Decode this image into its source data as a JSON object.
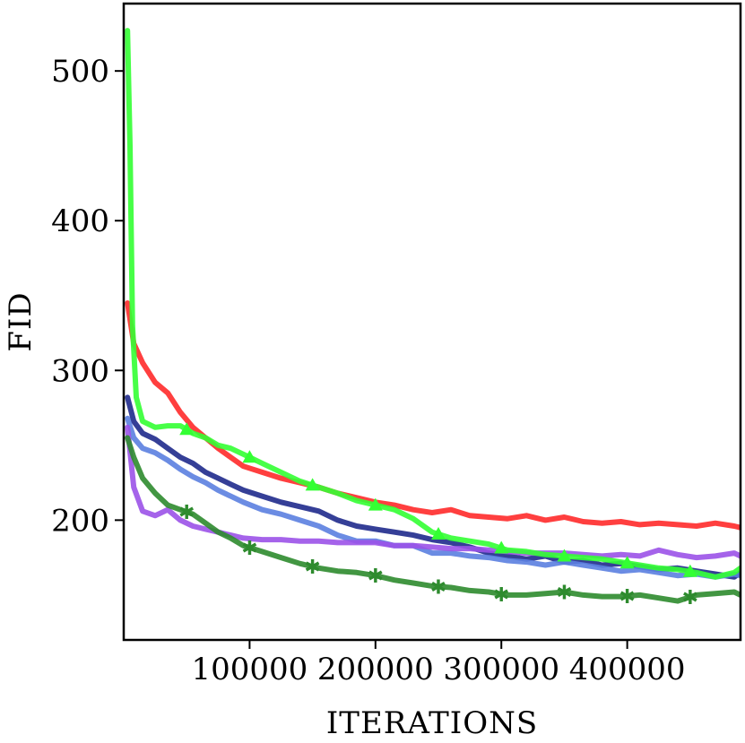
{
  "chart_data": {
    "type": "line",
    "xlabel": "ITERATIONS",
    "ylabel": "FID",
    "xlim": [
      0,
      490000
    ],
    "ylim": [
      120,
      545
    ],
    "x_ticks": [
      100000,
      200000,
      300000,
      400000
    ],
    "y_ticks": [
      200,
      300,
      400,
      500
    ],
    "grid": false,
    "series": [
      {
        "color": "#ff2a2a",
        "marker": "none",
        "points": [
          [
            3000,
            345
          ],
          [
            8000,
            318
          ],
          [
            15000,
            305
          ],
          [
            25000,
            292
          ],
          [
            35000,
            285
          ],
          [
            45000,
            272
          ],
          [
            55000,
            262
          ],
          [
            65000,
            255
          ],
          [
            75000,
            248
          ],
          [
            85000,
            242
          ],
          [
            95000,
            236
          ],
          [
            110000,
            232
          ],
          [
            125000,
            228
          ],
          [
            140000,
            225
          ],
          [
            155000,
            222
          ],
          [
            170000,
            218
          ],
          [
            185000,
            215
          ],
          [
            200000,
            212
          ],
          [
            215000,
            210
          ],
          [
            230000,
            207
          ],
          [
            245000,
            205
          ],
          [
            260000,
            207
          ],
          [
            275000,
            203
          ],
          [
            290000,
            202
          ],
          [
            305000,
            201
          ],
          [
            320000,
            203
          ],
          [
            335000,
            200
          ],
          [
            350000,
            202
          ],
          [
            365000,
            199
          ],
          [
            380000,
            198
          ],
          [
            395000,
            199
          ],
          [
            410000,
            197
          ],
          [
            425000,
            198
          ],
          [
            440000,
            197
          ],
          [
            455000,
            196
          ],
          [
            470000,
            198
          ],
          [
            485000,
            196
          ],
          [
            490000,
            195
          ]
        ]
      },
      {
        "color": "#1f2a8c",
        "marker": "none",
        "points": [
          [
            3000,
            282
          ],
          [
            8000,
            266
          ],
          [
            15000,
            258
          ],
          [
            25000,
            254
          ],
          [
            35000,
            248
          ],
          [
            45000,
            242
          ],
          [
            55000,
            238
          ],
          [
            65000,
            232
          ],
          [
            75000,
            228
          ],
          [
            85000,
            224
          ],
          [
            95000,
            220
          ],
          [
            110000,
            216
          ],
          [
            125000,
            212
          ],
          [
            140000,
            209
          ],
          [
            155000,
            206
          ],
          [
            170000,
            200
          ],
          [
            185000,
            196
          ],
          [
            200000,
            194
          ],
          [
            215000,
            192
          ],
          [
            230000,
            190
          ],
          [
            245000,
            187
          ],
          [
            260000,
            185
          ],
          [
            275000,
            182
          ],
          [
            290000,
            178
          ],
          [
            305000,
            176
          ],
          [
            320000,
            174
          ],
          [
            335000,
            176
          ],
          [
            350000,
            172
          ],
          [
            365000,
            173
          ],
          [
            380000,
            170
          ],
          [
            395000,
            171
          ],
          [
            410000,
            169
          ],
          [
            425000,
            167
          ],
          [
            440000,
            168
          ],
          [
            455000,
            166
          ],
          [
            470000,
            164
          ],
          [
            485000,
            162
          ],
          [
            490000,
            165
          ]
        ]
      },
      {
        "color": "#5b7fe0",
        "marker": "none",
        "points": [
          [
            3000,
            268
          ],
          [
            8000,
            255
          ],
          [
            15000,
            248
          ],
          [
            25000,
            245
          ],
          [
            35000,
            240
          ],
          [
            45000,
            234
          ],
          [
            55000,
            229
          ],
          [
            65000,
            225
          ],
          [
            75000,
            220
          ],
          [
            85000,
            216
          ],
          [
            95000,
            212
          ],
          [
            110000,
            207
          ],
          [
            125000,
            204
          ],
          [
            140000,
            200
          ],
          [
            155000,
            196
          ],
          [
            170000,
            190
          ],
          [
            185000,
            186
          ],
          [
            200000,
            186
          ],
          [
            215000,
            183
          ],
          [
            230000,
            183
          ],
          [
            245000,
            178
          ],
          [
            260000,
            178
          ],
          [
            275000,
            176
          ],
          [
            290000,
            175
          ],
          [
            305000,
            173
          ],
          [
            320000,
            172
          ],
          [
            335000,
            170
          ],
          [
            350000,
            172
          ],
          [
            365000,
            170
          ],
          [
            380000,
            168
          ],
          [
            395000,
            166
          ],
          [
            410000,
            167
          ],
          [
            425000,
            165
          ],
          [
            440000,
            163
          ],
          [
            455000,
            164
          ],
          [
            470000,
            162
          ],
          [
            485000,
            164
          ],
          [
            490000,
            163
          ]
        ]
      },
      {
        "color": "#9b52e8",
        "marker": "none",
        "points": [
          [
            3000,
            262
          ],
          [
            8000,
            222
          ],
          [
            15000,
            206
          ],
          [
            25000,
            203
          ],
          [
            35000,
            207
          ],
          [
            45000,
            200
          ],
          [
            55000,
            196
          ],
          [
            65000,
            194
          ],
          [
            75000,
            192
          ],
          [
            85000,
            190
          ],
          [
            95000,
            188
          ],
          [
            110000,
            187
          ],
          [
            125000,
            187
          ],
          [
            140000,
            186
          ],
          [
            155000,
            186
          ],
          [
            170000,
            185
          ],
          [
            185000,
            185
          ],
          [
            200000,
            185
          ],
          [
            215000,
            183
          ],
          [
            230000,
            183
          ],
          [
            245000,
            182
          ],
          [
            260000,
            181
          ],
          [
            275000,
            181
          ],
          [
            290000,
            180
          ],
          [
            305000,
            179
          ],
          [
            320000,
            178
          ],
          [
            335000,
            178
          ],
          [
            350000,
            178
          ],
          [
            365000,
            177
          ],
          [
            380000,
            176
          ],
          [
            395000,
            177
          ],
          [
            410000,
            176
          ],
          [
            425000,
            180
          ],
          [
            440000,
            177
          ],
          [
            455000,
            175
          ],
          [
            470000,
            176
          ],
          [
            485000,
            178
          ],
          [
            490000,
            176
          ]
        ]
      },
      {
        "color": "#33ff33",
        "marker": "triangle",
        "marker_every": 50000,
        "points": [
          [
            3000,
            527
          ],
          [
            5000,
            450
          ],
          [
            7000,
            330
          ],
          [
            10000,
            282
          ],
          [
            15000,
            266
          ],
          [
            25000,
            262
          ],
          [
            35000,
            263
          ],
          [
            45000,
            263
          ],
          [
            55000,
            258
          ],
          [
            65000,
            255
          ],
          [
            75000,
            250
          ],
          [
            85000,
            248
          ],
          [
            95000,
            244
          ],
          [
            110000,
            238
          ],
          [
            125000,
            232
          ],
          [
            140000,
            226
          ],
          [
            155000,
            222
          ],
          [
            170000,
            218
          ],
          [
            185000,
            213
          ],
          [
            200000,
            210
          ],
          [
            215000,
            207
          ],
          [
            230000,
            201
          ],
          [
            245000,
            192
          ],
          [
            260000,
            188
          ],
          [
            275000,
            186
          ],
          [
            290000,
            184
          ],
          [
            305000,
            180
          ],
          [
            320000,
            179
          ],
          [
            335000,
            177
          ],
          [
            350000,
            176
          ],
          [
            365000,
            175
          ],
          [
            380000,
            174
          ],
          [
            395000,
            172
          ],
          [
            410000,
            170
          ],
          [
            425000,
            168
          ],
          [
            440000,
            167
          ],
          [
            455000,
            165
          ],
          [
            470000,
            162
          ],
          [
            485000,
            165
          ],
          [
            490000,
            168
          ]
        ]
      },
      {
        "color": "#2e8b2e",
        "marker": "star",
        "marker_every": 50000,
        "points": [
          [
            3000,
            255
          ],
          [
            8000,
            242
          ],
          [
            15000,
            228
          ],
          [
            25000,
            218
          ],
          [
            35000,
            210
          ],
          [
            45000,
            207
          ],
          [
            55000,
            204
          ],
          [
            65000,
            198
          ],
          [
            75000,
            192
          ],
          [
            85000,
            188
          ],
          [
            95000,
            183
          ],
          [
            110000,
            179
          ],
          [
            125000,
            175
          ],
          [
            140000,
            171
          ],
          [
            155000,
            168
          ],
          [
            170000,
            166
          ],
          [
            185000,
            165
          ],
          [
            200000,
            163
          ],
          [
            215000,
            160
          ],
          [
            230000,
            158
          ],
          [
            245000,
            156
          ],
          [
            260000,
            155
          ],
          [
            275000,
            153
          ],
          [
            290000,
            152
          ],
          [
            305000,
            150
          ],
          [
            320000,
            150
          ],
          [
            335000,
            151
          ],
          [
            350000,
            152
          ],
          [
            365000,
            150
          ],
          [
            380000,
            149
          ],
          [
            395000,
            149
          ],
          [
            410000,
            150
          ],
          [
            425000,
            148
          ],
          [
            440000,
            146
          ],
          [
            455000,
            150
          ],
          [
            470000,
            151
          ],
          [
            485000,
            152
          ],
          [
            490000,
            150
          ]
        ]
      }
    ]
  }
}
